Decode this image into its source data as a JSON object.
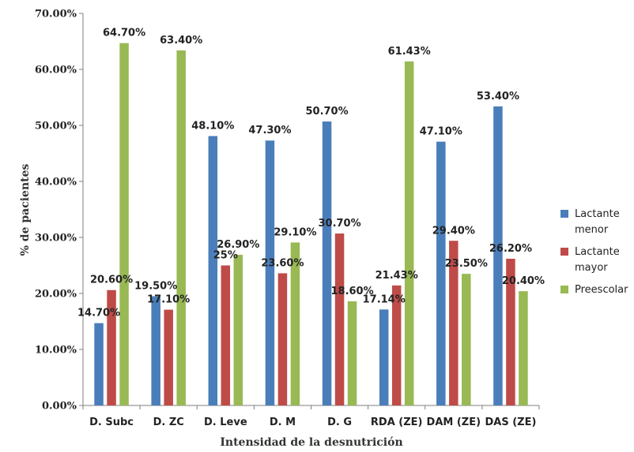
{
  "chart_data": {
    "type": "bar",
    "title": "",
    "xlabel": "Intensidad de la desnutrición",
    "ylabel": "% de pacientes",
    "ylim": [
      0,
      70
    ],
    "ytick_labels": [
      "0.00%",
      "10.00%",
      "20.00%",
      "30.00%",
      "40.00%",
      "50.00%",
      "60.00%",
      "70.00%"
    ],
    "yticks": [
      0,
      10,
      20,
      30,
      40,
      50,
      60,
      70
    ],
    "categories": [
      "D. Subc",
      "D. ZC",
      "D. Leve",
      "D. M",
      "D. G",
      "RDA (ZE)",
      "DAM (ZE)",
      "DAS (ZE)"
    ],
    "series": [
      {
        "name": "Lactante menor",
        "legend_lines": [
          "Lactante",
          "menor"
        ],
        "color": "#4a7ebb",
        "values": [
          14.7,
          19.5,
          48.1,
          47.3,
          50.7,
          17.14,
          47.1,
          53.4
        ],
        "labels": [
          "14.70%",
          "19.50%",
          "48.10%",
          "47.30%",
          "50.70%",
          "17.14%",
          "47.10%",
          "53.40%"
        ]
      },
      {
        "name": "Lactante mayor",
        "legend_lines": [
          "Lactante",
          "mayor"
        ],
        "color": "#be4b48",
        "values": [
          20.6,
          17.1,
          25,
          23.6,
          30.7,
          21.43,
          29.4,
          26.2
        ],
        "labels": [
          "20.60%",
          "17.10%",
          "25%",
          "23.60%",
          "30.70%",
          "21.43%",
          "29.40%",
          "26.20%"
        ]
      },
      {
        "name": "Preescolar",
        "legend_lines": [
          "Preescolar"
        ],
        "color": "#98b954",
        "values": [
          64.7,
          63.4,
          26.9,
          29.1,
          18.6,
          61.43,
          23.5,
          20.4
        ],
        "labels": [
          "64.70%",
          "63.40%",
          "26.90%",
          "29.10%",
          "18.60%",
          "61.43%",
          "23.50%",
          "20.40%"
        ]
      }
    ],
    "grid": false,
    "legend_position": "right"
  }
}
